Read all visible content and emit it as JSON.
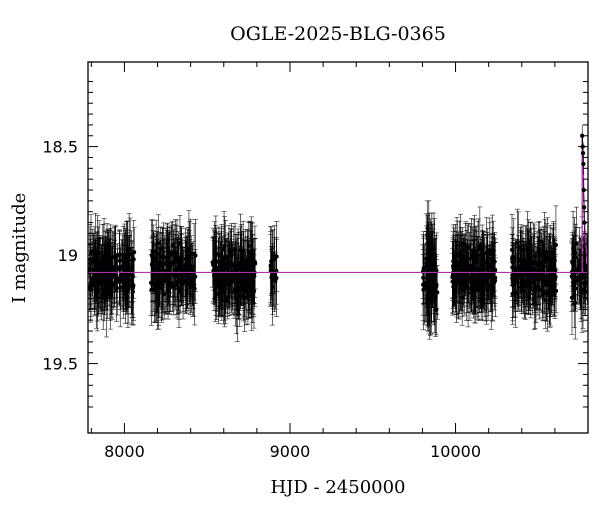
{
  "chart_data": {
    "type": "scatter",
    "title": "OGLE-2025-BLG-0365",
    "xlabel": "HJD - 2450000",
    "ylabel": "I magnitude",
    "xlim": [
      7780,
      10800
    ],
    "ylim": [
      19.82,
      18.11
    ],
    "y_inverted": true,
    "x_ticks": [
      8000,
      9000,
      10000
    ],
    "y_ticks": [
      18.5,
      19,
      19.5
    ],
    "baseline_magnitude": 19.08,
    "baseline_color": "#b030b0",
    "point_color": "#000000",
    "grid": false,
    "seasons": [
      {
        "x_start": 7790,
        "x_end": 8060,
        "mean_mag": 19.08,
        "scatter": 0.1,
        "error_bar": 0.14,
        "n_points": 200
      },
      {
        "x_start": 8160,
        "x_end": 8430,
        "mean_mag": 19.08,
        "scatter": 0.1,
        "error_bar": 0.14,
        "n_points": 200
      },
      {
        "x_start": 8530,
        "x_end": 8790,
        "mean_mag": 19.08,
        "scatter": 0.1,
        "error_bar": 0.14,
        "n_points": 200
      },
      {
        "x_start": 8880,
        "x_end": 8920,
        "mean_mag": 19.08,
        "scatter": 0.07,
        "error_bar": 0.14,
        "n_points": 20
      },
      {
        "x_start": 9800,
        "x_end": 9890,
        "mean_mag": 19.1,
        "scatter": 0.13,
        "error_bar": 0.16,
        "n_points": 70
      },
      {
        "x_start": 9980,
        "x_end": 10240,
        "mean_mag": 19.08,
        "scatter": 0.1,
        "error_bar": 0.14,
        "n_points": 200
      },
      {
        "x_start": 10340,
        "x_end": 10610,
        "mean_mag": 19.08,
        "scatter": 0.1,
        "error_bar": 0.14,
        "n_points": 200
      },
      {
        "x_start": 10700,
        "x_end": 10800,
        "mean_mag": 19.08,
        "scatter": 0.1,
        "error_bar": 0.14,
        "n_points": 60
      }
    ],
    "event": {
      "peak_hjd": 10770,
      "peak_magnitude": 18.45,
      "model_color": "#b030b0",
      "points": [
        {
          "x": 10765,
          "y": 18.45
        },
        {
          "x": 10768,
          "y": 18.5
        },
        {
          "x": 10770,
          "y": 18.53
        },
        {
          "x": 10772,
          "y": 18.58
        },
        {
          "x": 10774,
          "y": 18.7
        },
        {
          "x": 10776,
          "y": 18.78
        },
        {
          "x": 10778,
          "y": 18.85
        }
      ]
    }
  }
}
